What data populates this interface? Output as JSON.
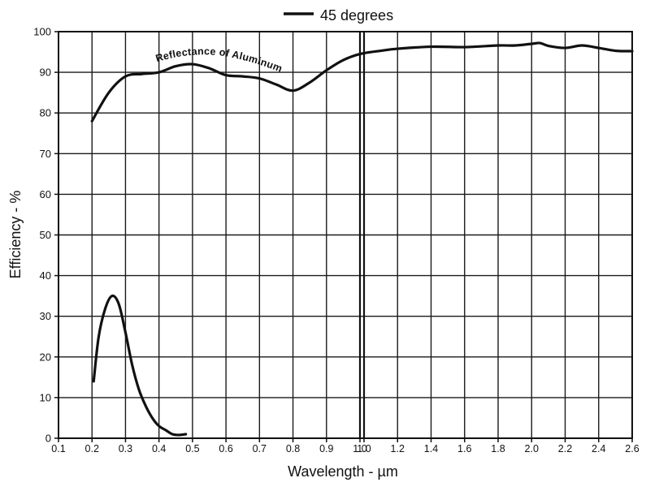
{
  "chart_data": {
    "type": "line",
    "legend": {
      "label": "45 degrees",
      "placement": "top-center"
    },
    "xlabel": "Wavelength - µm",
    "ylabel": "Efficiency - %",
    "grid": true,
    "x_segments": [
      {
        "range": [
          0.1,
          1.0
        ],
        "ticks": [
          0.1,
          0.2,
          0.3,
          0.4,
          0.5,
          0.6,
          0.7,
          0.8,
          0.9,
          1.0
        ]
      },
      {
        "range": [
          1.0,
          2.6
        ],
        "ticks": [
          1.0,
          1.2,
          1.4,
          1.6,
          1.8,
          2.0,
          2.2,
          2.4,
          2.6
        ]
      }
    ],
    "x_tick_labels": [
      "0.1",
      "0.2",
      "0.3",
      "0.4",
      "0.5",
      "0.6",
      "0.7",
      "0.8",
      "0.9",
      "1.0",
      "1.0",
      "1.2",
      "1.4",
      "1.6",
      "1.8",
      "2.0",
      "2.2",
      "2.4",
      "2.6"
    ],
    "ylim": [
      0,
      100
    ],
    "y_ticks": [
      0,
      10,
      20,
      30,
      40,
      50,
      60,
      70,
      80,
      90,
      100
    ],
    "series": [
      {
        "label": "Reflectance of Aluminum",
        "x": [
          0.2,
          0.25,
          0.3,
          0.35,
          0.4,
          0.45,
          0.5,
          0.55,
          0.6,
          0.65,
          0.7,
          0.75,
          0.8,
          0.85,
          0.9,
          0.95,
          1.0,
          1.1,
          1.2,
          1.4,
          1.6,
          1.8,
          1.9,
          2.0,
          2.05,
          2.1,
          2.2,
          2.3,
          2.4,
          2.5,
          2.6
        ],
        "y": [
          78,
          85,
          89,
          89.6,
          90,
          91.5,
          92,
          91,
          89.3,
          89,
          88.5,
          87,
          85.5,
          87.5,
          90.5,
          93,
          94.5,
          95.3,
          95.8,
          96.3,
          96.2,
          96.6,
          96.6,
          97,
          97.2,
          96.5,
          96,
          96.6,
          96,
          95.3,
          95.2
        ]
      },
      {
        "label": "",
        "x": [
          0.205,
          0.22,
          0.24,
          0.26,
          0.28,
          0.3,
          0.32,
          0.34,
          0.36,
          0.38,
          0.4,
          0.42,
          0.44,
          0.46,
          0.48
        ],
        "y": [
          14,
          25,
          32,
          35,
          33,
          26,
          18,
          12,
          8,
          5,
          3,
          2,
          1,
          0.8,
          1
        ]
      }
    ]
  }
}
